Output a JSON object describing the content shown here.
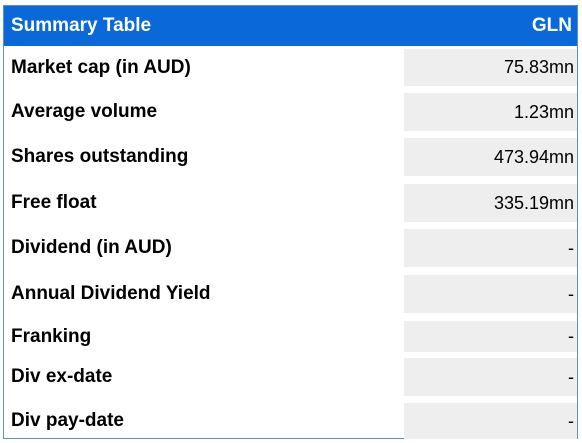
{
  "header": {
    "title": "Summary Table",
    "ticker": "GLN"
  },
  "rows": [
    {
      "label": "Market cap (in AUD)",
      "value": "75.83mn"
    },
    {
      "label": "Average volume",
      "value": "1.23mn"
    },
    {
      "label": "Shares outstanding",
      "value": "473.94mn"
    },
    {
      "label": "Free float",
      "value": "335.19mn"
    },
    {
      "label": "Dividend (in AUD)",
      "value": "-"
    },
    {
      "label": "Annual Dividend Yield",
      "value": "-"
    },
    {
      "label": "Franking",
      "value": "-"
    },
    {
      "label": "Div ex-date",
      "value": "-"
    },
    {
      "label": "Div pay-date",
      "value": "-"
    }
  ],
  "colors": {
    "header_bg": "#0a68d8",
    "header_text": "#ffffff",
    "value_bg": "#eeeeee",
    "border": "#5b8fd0"
  }
}
